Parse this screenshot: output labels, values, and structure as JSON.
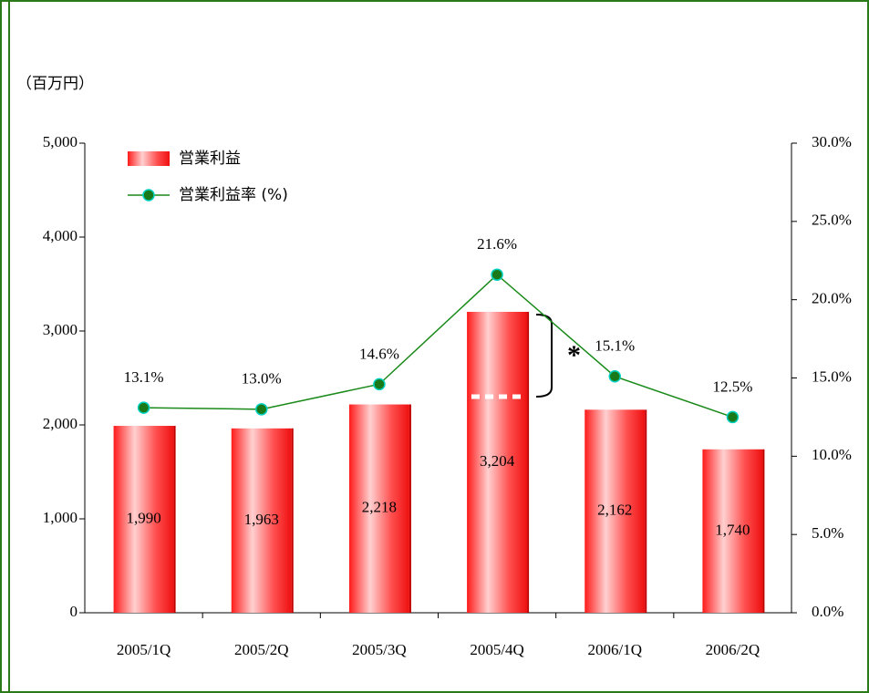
{
  "chart_data": {
    "type": "bar_line",
    "unit_label": "（百万円）",
    "categories": [
      "2005/1Q",
      "2005/2Q",
      "2005/3Q",
      "2005/4Q",
      "2006/1Q",
      "2006/2Q"
    ],
    "series": [
      {
        "name": "営業利益",
        "color": "#ff2a2a",
        "values": [
          1990,
          1963,
          2218,
          3204,
          2162,
          1740
        ],
        "value_labels": [
          "1,990",
          "1,963",
          "2,218",
          "3,204",
          "2,162",
          "1,740"
        ]
      },
      {
        "name": "営業利益率 (%)",
        "color": "#1a8a1a",
        "axis": "y2",
        "values": [
          13.1,
          13.0,
          14.6,
          21.6,
          15.1,
          12.5
        ],
        "value_labels": [
          "13.1%",
          "13.0%",
          "14.6%",
          "21.6%",
          "15.1%",
          "12.5%"
        ]
      }
    ],
    "annotation": "*",
    "ylim": [
      0,
      5000
    ],
    "yticks": [
      0,
      {
        "value": 1000,
        "label": "1,000"
      },
      {
        "value": 2000,
        "label": "2,000"
      },
      {
        "value": 3000,
        "label": "3,000"
      },
      {
        "value": 4000,
        "label": "4,000"
      },
      {
        "value": 5000,
        "label": "5,000"
      }
    ],
    "y2lim": [
      0,
      30
    ],
    "y2ticks": [
      {
        "value": 0,
        "label": "0.0%"
      },
      {
        "value": 5,
        "label": "5.0%"
      },
      {
        "value": 10,
        "label": "10.0%"
      },
      {
        "value": 15,
        "label": "15.0%"
      },
      {
        "value": 20,
        "label": "20.0%"
      },
      {
        "value": 25,
        "label": "25.0%"
      },
      {
        "value": 30,
        "label": "30.0%"
      }
    ]
  }
}
